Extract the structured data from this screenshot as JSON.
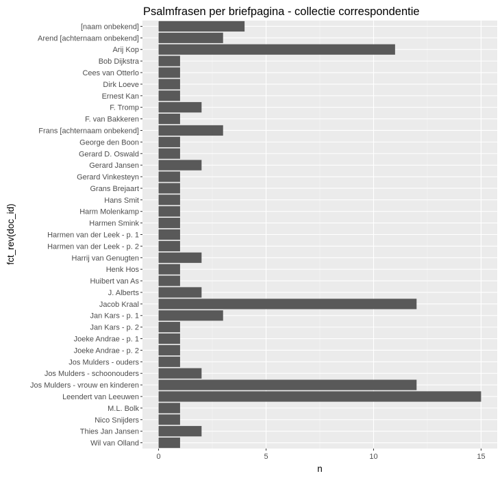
{
  "chart_data": {
    "type": "bar",
    "orientation": "horizontal",
    "title": "Psalmfrasen per briefpagina - collectie correspondentie",
    "xlabel": "n",
    "ylabel": "fct_rev(doc_id)",
    "xlim": [
      -0.75,
      15.75
    ],
    "xticks": [
      0,
      5,
      10,
      15
    ],
    "grid": true,
    "categories": [
      "[naam onbekend]",
      "Arend [achternaam onbekend]",
      "Arij Kop",
      "Bob Dijkstra",
      "Cees van Otterlo",
      "Dirk Loeve",
      "Ernest Kan",
      "F. Tromp",
      "F. van Bakkeren",
      "Frans [achternaam onbekend]",
      "George den Boon",
      "Gerard D. Oswald",
      "Gerard Jansen",
      "Gerard Vinkesteyn",
      "Grans Brejaart",
      "Hans Smit",
      "Harm Molenkamp",
      "Harmen Smink",
      "Harmen van der Leek - p. 1",
      "Harmen van der Leek - p. 2",
      "Harrij van Genugten",
      "Henk Hos",
      "Huibert van As",
      "J. Alberts",
      "Jacob Kraal",
      "Jan Kars - p. 1",
      "Jan Kars - p. 2",
      "Joeke Andrae - p. 1",
      "Joeke Andrae - p. 2",
      "Jos Mulders - ouders",
      "Jos Mulders - schoonouders",
      "Jos Mulders - vrouw en kinderen",
      "Leendert van Leeuwen",
      "M.L. Bolk",
      "Nico Snijders",
      "Thies Jan Jansen",
      "Wil van Olland"
    ],
    "values": [
      4,
      3,
      11,
      1,
      1,
      1,
      1,
      2,
      1,
      3,
      1,
      1,
      2,
      1,
      1,
      1,
      1,
      1,
      1,
      1,
      2,
      1,
      1,
      2,
      12,
      3,
      1,
      1,
      1,
      1,
      2,
      12,
      15,
      1,
      1,
      2,
      1
    ]
  },
  "colors": {
    "panel_background": "#ebebeb",
    "bar_fill": "#595959",
    "grid_line": "#ffffff",
    "tick_label": "#4d4d4d"
  }
}
